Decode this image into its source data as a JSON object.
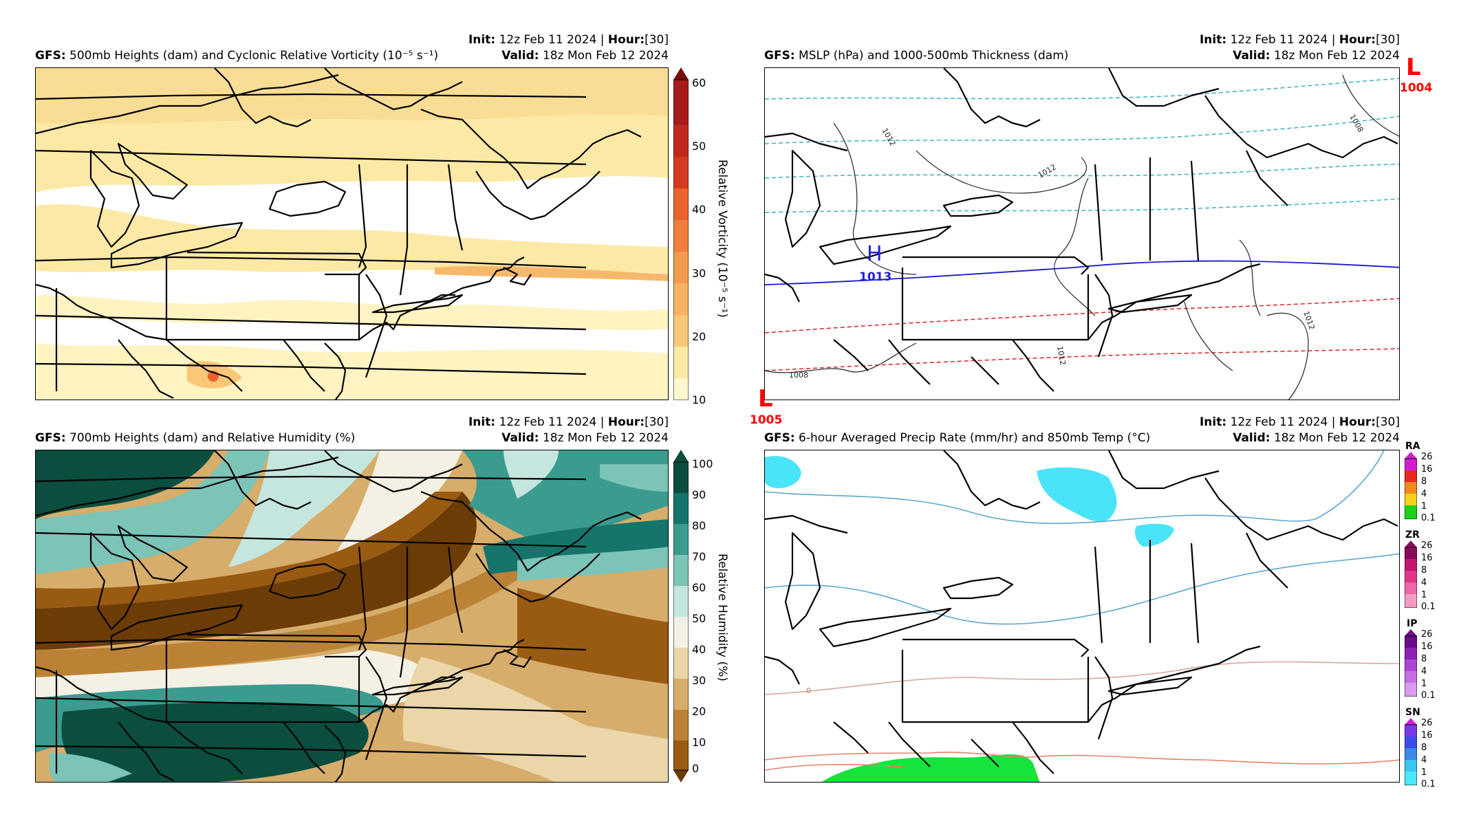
{
  "panels": {
    "vort": {
      "init_label": "Init",
      "init_value": "12z Feb 11 2024",
      "hour_label": "Hour",
      "hour_value": "[30]",
      "valid_label": "Valid",
      "valid_value": "18z Mon Feb 12 2024",
      "model": "GFS",
      "title": "500mb Heights (dam) and Cyclonic Relative Vorticity (10⁻⁵ s⁻¹)",
      "colorbar_label": "Relative Vorticity (10⁻⁵ s⁻¹)",
      "colorbar_ticks": [
        "60",
        "50",
        "40",
        "30",
        "20",
        "10"
      ],
      "colors": [
        "#fff8cc",
        "#fde9a6",
        "#f9c777",
        "#f39a4d",
        "#e9642d",
        "#d43a1f",
        "#a81b1b",
        "#7a0c0c"
      ]
    },
    "mslp": {
      "init_label": "Init",
      "init_value": "12z Feb 11 2024",
      "hour_label": "Hour",
      "hour_value": "[30]",
      "valid_label": "Valid",
      "valid_value": "18z Mon Feb 12 2024",
      "model": "GFS",
      "title": "MSLP (hPa) and 1000-500mb Thickness (dam)",
      "low_symbol": "L",
      "high_symbol": "H",
      "low_ne_value": "1004",
      "low_sw_value": "1005",
      "high_value": "1013",
      "isobar_labels": [
        "1012",
        "1012",
        "1008",
        "1008",
        "1012",
        "1012"
      ],
      "colors": {
        "cold_thickness": "#3bb0c4",
        "freeze_line": "#1a1acc",
        "warm_thickness": "#e02020",
        "low": "#ff0000",
        "high": "#2020dd"
      }
    },
    "rh": {
      "init_label": "Init",
      "init_value": "12z Feb 11 2024",
      "hour_label": "Hour",
      "hour_value": "[30]",
      "valid_label": "Valid",
      "valid_value": "18z Mon Feb 12 2024",
      "model": "GFS",
      "title": "700mb Heights (dam) and Relative Humidity (%)",
      "colorbar_label": "Relative Humidity (%)",
      "colorbar_ticks": [
        "100",
        "90",
        "80",
        "70",
        "60",
        "50",
        "40",
        "30",
        "20",
        "10",
        "0"
      ],
      "colors": [
        "#0b4d3f",
        "#16756a",
        "#3c9b8f",
        "#7cc3b8",
        "#c4e6df",
        "#f4f0e4",
        "#ead6a8",
        "#d6ad6a",
        "#bb8235",
        "#995a12",
        "#6b3c06"
      ]
    },
    "precip": {
      "init_label": "Init",
      "init_value": "12z Feb 11 2024",
      "hour_label": "Hour",
      "hour_value": "[30]",
      "valid_label": "Valid",
      "valid_value": "18z Mon Feb 12 2024",
      "model": "GFS",
      "title": "6-hour Averaged Precip Rate (mm/hr) and 850mb Temp (°C)",
      "zero_label": "0",
      "ptypes": [
        {
          "label": "RA",
          "ticks": [
            "26",
            "16",
            "8",
            "4",
            "1",
            "0.1"
          ],
          "colors": [
            "#d21fd2",
            "#e8271e",
            "#f08a1a",
            "#f4d11a",
            "#7ad11a",
            "#1ad11a"
          ]
        },
        {
          "label": "ZR",
          "ticks": [
            "26",
            "16",
            "8",
            "4",
            "1",
            "0.1"
          ],
          "colors": [
            "#8a0a5a",
            "#c2186f",
            "#e0368a",
            "#ee67a8",
            "#f49ac5",
            "#f9c9e0"
          ]
        },
        {
          "label": "IP",
          "ticks": [
            "26",
            "16",
            "8",
            "4",
            "1",
            "0.1"
          ],
          "colors": [
            "#6a0a8a",
            "#8e22b4",
            "#ad45d4",
            "#c56ee4",
            "#d99bf0",
            "#ebc6f7"
          ]
        },
        {
          "label": "SN",
          "ticks": [
            "26",
            "16",
            "8",
            "4",
            "1",
            "0.1"
          ],
          "colors": [
            "#d21fd2",
            "#7a3ae8",
            "#3a4ee8",
            "#3a8ae8",
            "#3ac6f0",
            "#4ae8f8"
          ]
        }
      ],
      "colors": {
        "rain": "#14e43c",
        "snow": "#4ae4f8",
        "cold_isotherm": "#5aa7cf",
        "warm_isotherm": "#e8826a",
        "zero_isotherm": "#d9a79a"
      }
    }
  }
}
